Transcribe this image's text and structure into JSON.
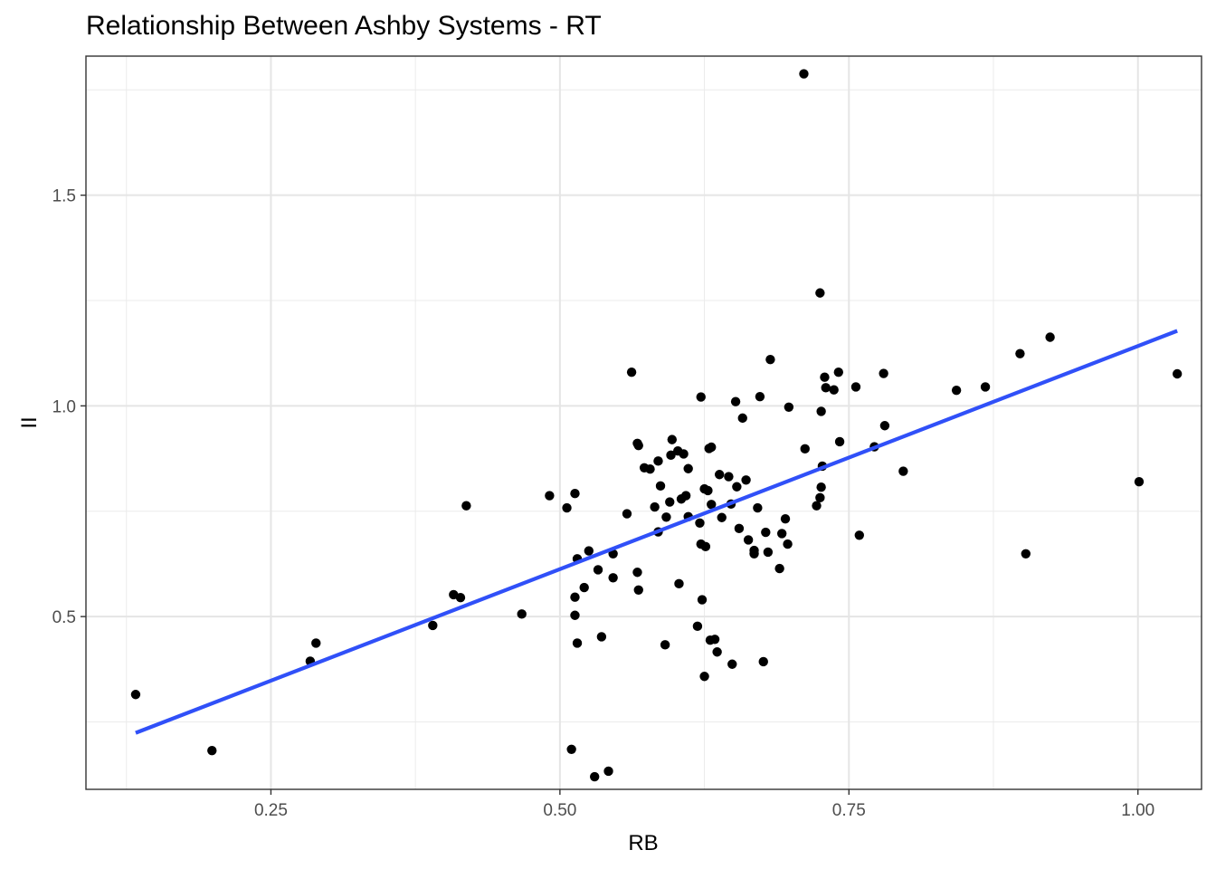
{
  "chart_data": {
    "type": "scatter",
    "title": "Relationship Between Ashby Systems - RT",
    "xlabel": "RB",
    "ylabel": "II",
    "xlim": [
      0.09,
      1.055
    ],
    "ylim": [
      0.09,
      1.83
    ],
    "x_ticks": [
      0.25,
      0.5,
      0.75,
      1.0
    ],
    "x_tick_labels": [
      "0.25",
      "0.50",
      "0.75",
      "1.00"
    ],
    "y_ticks": [
      0.5,
      1.0,
      1.5
    ],
    "y_tick_labels": [
      "0.5",
      "1.0",
      "1.5"
    ],
    "grid": true,
    "point_color": "#000000",
    "fit_line": {
      "type": "linear",
      "color": "#3050f8",
      "x": [
        0.133,
        1.034
      ],
      "y": [
        0.224,
        1.178
      ]
    },
    "points": [
      {
        "x": 0.133,
        "y": 0.315
      },
      {
        "x": 0.199,
        "y": 0.182
      },
      {
        "x": 0.284,
        "y": 0.394
      },
      {
        "x": 0.289,
        "y": 0.437
      },
      {
        "x": 0.39,
        "y": 0.479
      },
      {
        "x": 0.408,
        "y": 0.552
      },
      {
        "x": 0.414,
        "y": 0.545
      },
      {
        "x": 0.419,
        "y": 0.763
      },
      {
        "x": 0.467,
        "y": 0.506
      },
      {
        "x": 0.491,
        "y": 0.787
      },
      {
        "x": 0.506,
        "y": 0.758
      },
      {
        "x": 0.51,
        "y": 0.185
      },
      {
        "x": 0.513,
        "y": 0.503
      },
      {
        "x": 0.513,
        "y": 0.546
      },
      {
        "x": 0.513,
        "y": 0.792
      },
      {
        "x": 0.515,
        "y": 0.637
      },
      {
        "x": 0.515,
        "y": 0.437
      },
      {
        "x": 0.521,
        "y": 0.569
      },
      {
        "x": 0.525,
        "y": 0.656
      },
      {
        "x": 0.53,
        "y": 0.12
      },
      {
        "x": 0.533,
        "y": 0.611
      },
      {
        "x": 0.536,
        "y": 0.452
      },
      {
        "x": 0.542,
        "y": 0.133
      },
      {
        "x": 0.546,
        "y": 0.592
      },
      {
        "x": 0.546,
        "y": 0.649
      },
      {
        "x": 0.558,
        "y": 0.744
      },
      {
        "x": 0.562,
        "y": 1.08
      },
      {
        "x": 0.567,
        "y": 0.605
      },
      {
        "x": 0.567,
        "y": 0.911
      },
      {
        "x": 0.568,
        "y": 0.563
      },
      {
        "x": 0.568,
        "y": 0.906
      },
      {
        "x": 0.573,
        "y": 0.853
      },
      {
        "x": 0.578,
        "y": 0.85
      },
      {
        "x": 0.582,
        "y": 0.76
      },
      {
        "x": 0.585,
        "y": 0.869
      },
      {
        "x": 0.585,
        "y": 0.701
      },
      {
        "x": 0.587,
        "y": 0.81
      },
      {
        "x": 0.591,
        "y": 0.433
      },
      {
        "x": 0.592,
        "y": 0.736
      },
      {
        "x": 0.595,
        "y": 0.772
      },
      {
        "x": 0.596,
        "y": 0.883
      },
      {
        "x": 0.597,
        "y": 0.92
      },
      {
        "x": 0.602,
        "y": 0.893
      },
      {
        "x": 0.603,
        "y": 0.578
      },
      {
        "x": 0.605,
        "y": 0.779
      },
      {
        "x": 0.607,
        "y": 0.886
      },
      {
        "x": 0.609,
        "y": 0.787
      },
      {
        "x": 0.611,
        "y": 0.851
      },
      {
        "x": 0.611,
        "y": 0.737
      },
      {
        "x": 0.619,
        "y": 0.477
      },
      {
        "x": 0.621,
        "y": 0.722
      },
      {
        "x": 0.622,
        "y": 1.021
      },
      {
        "x": 0.622,
        "y": 0.672
      },
      {
        "x": 0.623,
        "y": 0.54
      },
      {
        "x": 0.625,
        "y": 0.358
      },
      {
        "x": 0.625,
        "y": 0.803
      },
      {
        "x": 0.626,
        "y": 0.666
      },
      {
        "x": 0.628,
        "y": 0.799
      },
      {
        "x": 0.629,
        "y": 0.899
      },
      {
        "x": 0.63,
        "y": 0.444
      },
      {
        "x": 0.631,
        "y": 0.766
      },
      {
        "x": 0.631,
        "y": 0.902
      },
      {
        "x": 0.634,
        "y": 0.446
      },
      {
        "x": 0.636,
        "y": 0.416
      },
      {
        "x": 0.638,
        "y": 0.837
      },
      {
        "x": 0.64,
        "y": 0.735
      },
      {
        "x": 0.646,
        "y": 0.832
      },
      {
        "x": 0.648,
        "y": 0.767
      },
      {
        "x": 0.649,
        "y": 0.387
      },
      {
        "x": 0.652,
        "y": 1.01
      },
      {
        "x": 0.653,
        "y": 0.808
      },
      {
        "x": 0.655,
        "y": 0.709
      },
      {
        "x": 0.658,
        "y": 0.971
      },
      {
        "x": 0.661,
        "y": 0.824
      },
      {
        "x": 0.663,
        "y": 0.682
      },
      {
        "x": 0.668,
        "y": 0.657
      },
      {
        "x": 0.668,
        "y": 0.649
      },
      {
        "x": 0.671,
        "y": 0.758
      },
      {
        "x": 0.673,
        "y": 1.022
      },
      {
        "x": 0.676,
        "y": 0.393
      },
      {
        "x": 0.678,
        "y": 0.7
      },
      {
        "x": 0.68,
        "y": 0.653
      },
      {
        "x": 0.682,
        "y": 1.11
      },
      {
        "x": 0.69,
        "y": 0.614
      },
      {
        "x": 0.692,
        "y": 0.697
      },
      {
        "x": 0.695,
        "y": 0.732
      },
      {
        "x": 0.697,
        "y": 0.672
      },
      {
        "x": 0.698,
        "y": 0.997
      },
      {
        "x": 0.711,
        "y": 1.788
      },
      {
        "x": 0.712,
        "y": 0.898
      },
      {
        "x": 0.722,
        "y": 0.763
      },
      {
        "x": 0.725,
        "y": 0.782
      },
      {
        "x": 0.725,
        "y": 1.268
      },
      {
        "x": 0.726,
        "y": 0.807
      },
      {
        "x": 0.726,
        "y": 0.987
      },
      {
        "x": 0.727,
        "y": 0.857
      },
      {
        "x": 0.729,
        "y": 1.068
      },
      {
        "x": 0.73,
        "y": 1.043
      },
      {
        "x": 0.737,
        "y": 1.038
      },
      {
        "x": 0.741,
        "y": 1.08
      },
      {
        "x": 0.742,
        "y": 0.915
      },
      {
        "x": 0.756,
        "y": 1.045
      },
      {
        "x": 0.759,
        "y": 0.693
      },
      {
        "x": 0.772,
        "y": 0.903
      },
      {
        "x": 0.78,
        "y": 1.077
      },
      {
        "x": 0.781,
        "y": 0.953
      },
      {
        "x": 0.797,
        "y": 0.845
      },
      {
        "x": 0.843,
        "y": 1.037
      },
      {
        "x": 0.868,
        "y": 1.045
      },
      {
        "x": 0.898,
        "y": 1.124
      },
      {
        "x": 0.903,
        "y": 0.649
      },
      {
        "x": 0.924,
        "y": 1.163
      },
      {
        "x": 1.001,
        "y": 0.82
      },
      {
        "x": 1.034,
        "y": 1.076
      }
    ]
  }
}
